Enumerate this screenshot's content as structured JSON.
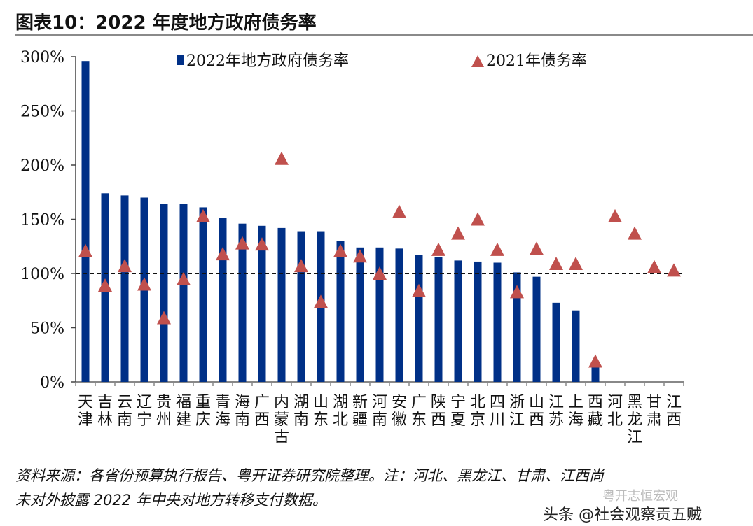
{
  "title": "图表10：2022 年度地方政府债务率",
  "chart_data": {
    "type": "bar+scatter",
    "categories": [
      "天津",
      "吉林",
      "云南",
      "辽宁",
      "贵州",
      "福建",
      "重庆",
      "青海",
      "海南",
      "广西",
      "内蒙古",
      "湖南",
      "山东",
      "湖北",
      "新疆",
      "河南",
      "安徽",
      "广东",
      "陕西",
      "宁夏",
      "北京",
      "四川",
      "浙江",
      "山西",
      "江苏",
      "上海",
      "西藏",
      "河北",
      "黑龙江",
      "甘肃",
      "江西"
    ],
    "series": [
      {
        "name": "2022年地方政府债务率",
        "type": "bar",
        "color": "#003087",
        "values": [
          296,
          174,
          172,
          170,
          164,
          164,
          161,
          151,
          146,
          144,
          142,
          139,
          139,
          130,
          124,
          124,
          123,
          117,
          115,
          112,
          111,
          110,
          101,
          97,
          73,
          66,
          14,
          null,
          null,
          null,
          null
        ]
      },
      {
        "name": "2021年债务率",
        "type": "scatter",
        "marker": "triangle",
        "color": "#c0504d",
        "values": [
          121,
          89,
          107,
          90,
          59,
          95,
          153,
          118,
          128,
          127,
          206,
          107,
          74,
          121,
          116,
          100,
          157,
          84,
          122,
          137,
          150,
          122,
          83,
          123,
          109,
          109,
          19,
          153,
          137,
          106,
          103
        ]
      }
    ],
    "ylim": [
      0,
      300
    ],
    "yticks": [
      "0%",
      "50%",
      "100%",
      "150%",
      "200%",
      "250%",
      "300%"
    ],
    "reference_line": {
      "value": 100,
      "style": "dashed"
    },
    "legend": "top",
    "grid": false
  },
  "footer": {
    "line1": "资料来源：各省份预算执行报告、粤开证券研究院整理。注：河北、黑龙江、甘肃、江西尚",
    "line2": "未对外披露 2022 年中央对地方转移支付数据。"
  },
  "watermark": {
    "text": "头条 @社会观察贡五贼",
    "faint": "粤开志恒宏观"
  }
}
